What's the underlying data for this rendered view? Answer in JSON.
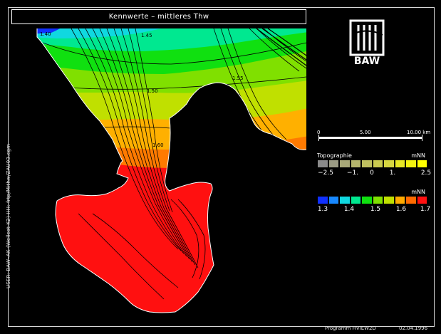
{
  "title": "Kennwerte  –  mittleres Thw",
  "logo_text": "BAW",
  "side_label": "USER: BAW–AK (Wellcot K2)      HH: frtp/Mithw/ZAU03.cgm",
  "footer": {
    "program": "Programm HVIEW2D",
    "date": "02.04.1996"
  },
  "scale_bar": {
    "labels": [
      "0",
      "5.00",
      "10.00 km"
    ]
  },
  "topo_legend": {
    "title": "Topographie",
    "unit": "mNN",
    "colors": [
      "#8a8a8a",
      "#9b9b84",
      "#a8a878",
      "#b5b56c",
      "#c0c060",
      "#caca50",
      "#d6d640",
      "#e6e624",
      "#f2f210",
      "#ffff00"
    ],
    "labels": [
      "−2.5",
      "−1.",
      "0",
      "1.",
      "2.5"
    ]
  },
  "value_legend": {
    "unit": "mNN",
    "colors": [
      "#1030ff",
      "#1888ff",
      "#10d8e0",
      "#00e890",
      "#10e010",
      "#80e000",
      "#c0e000",
      "#ffaa00",
      "#ff6a00",
      "#ff1010"
    ],
    "labels": [
      "1.3",
      "1.4",
      "1.5",
      "1.6",
      "1.7"
    ]
  },
  "map_labels": [
    "1.40",
    "1.45",
    "1.50",
    "1.55",
    "1.60"
  ],
  "colors": {
    "background": "#000000",
    "frame": "#d8d8d8"
  }
}
